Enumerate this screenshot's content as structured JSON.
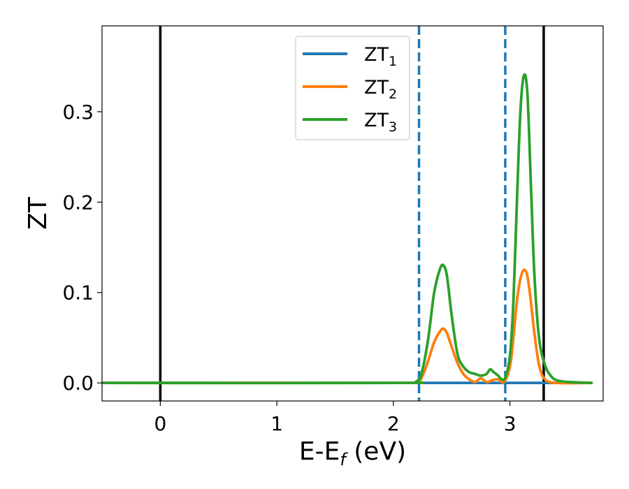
{
  "chart_data": {
    "type": "line",
    "title": "",
    "xlabel": {
      "main": "E-E",
      "sub": "f",
      "tail": " (eV)"
    },
    "ylabel": "ZT",
    "xlim": [
      -0.5,
      3.8
    ],
    "ylim": [
      -0.02,
      0.395
    ],
    "xticks": [
      0,
      1,
      2,
      3
    ],
    "xtick_labels": [
      "0",
      "1",
      "2",
      "3"
    ],
    "yticks": [
      0.0,
      0.1,
      0.2,
      0.3
    ],
    "ytick_labels": [
      "0.0",
      "0.1",
      "0.2",
      "0.3"
    ],
    "grid": false,
    "legend_position": "top-center",
    "vertical_lines": [
      {
        "x": 0.0,
        "style": "solid",
        "color": "#000000"
      },
      {
        "x": 3.29,
        "style": "solid",
        "color": "#000000"
      },
      {
        "x": 2.22,
        "style": "dashed",
        "color": "#1f77b4"
      },
      {
        "x": 2.96,
        "style": "dashed",
        "color": "#1f77b4"
      }
    ],
    "series": [
      {
        "name": "ZT",
        "name_sub": "1",
        "color": "#1f77b4",
        "x": [
          -0.5,
          2.2,
          2.3,
          3.1,
          3.2,
          3.7
        ],
        "y": [
          0,
          0,
          0,
          0,
          0,
          0
        ]
      },
      {
        "name": "ZT",
        "name_sub": "2",
        "color": "#ff7f0e",
        "x": [
          -0.5,
          2.0,
          2.2,
          2.25,
          2.3,
          2.35,
          2.4,
          2.43,
          2.46,
          2.5,
          2.55,
          2.6,
          2.65,
          2.7,
          2.75,
          2.8,
          2.85,
          2.9,
          2.95,
          3.0,
          3.03,
          3.06,
          3.09,
          3.12,
          3.15,
          3.18,
          3.21,
          3.25,
          3.3,
          3.4,
          3.7
        ],
        "y": [
          0,
          0,
          0.001,
          0.008,
          0.025,
          0.045,
          0.057,
          0.06,
          0.055,
          0.04,
          0.022,
          0.01,
          0.004,
          0.001,
          0.005,
          0.001,
          0.003,
          0.004,
          0.001,
          0.018,
          0.05,
          0.09,
          0.115,
          0.125,
          0.118,
          0.09,
          0.055,
          0.02,
          0.004,
          0,
          0
        ]
      },
      {
        "name": "ZT",
        "name_sub": "3",
        "color": "#2ca02c",
        "x": [
          -0.5,
          2.0,
          2.2,
          2.25,
          2.3,
          2.35,
          2.4,
          2.43,
          2.46,
          2.5,
          2.55,
          2.6,
          2.65,
          2.7,
          2.75,
          2.8,
          2.83,
          2.86,
          2.9,
          2.93,
          2.96,
          3.0,
          3.03,
          3.06,
          3.09,
          3.12,
          3.15,
          3.18,
          3.21,
          3.25,
          3.3,
          3.35,
          3.4,
          3.5,
          3.7
        ],
        "y": [
          0,
          0,
          0.002,
          0.015,
          0.05,
          0.1,
          0.126,
          0.13,
          0.118,
          0.075,
          0.032,
          0.018,
          0.012,
          0.01,
          0.008,
          0.01,
          0.015,
          0.012,
          0.008,
          0.004,
          0.006,
          0.03,
          0.09,
          0.2,
          0.3,
          0.34,
          0.32,
          0.22,
          0.12,
          0.05,
          0.02,
          0.008,
          0.003,
          0.001,
          0
        ]
      }
    ]
  }
}
